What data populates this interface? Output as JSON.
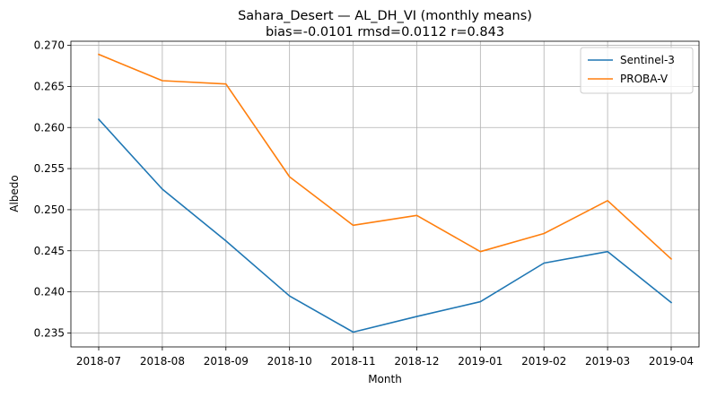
{
  "chart_data": {
    "type": "line",
    "title": "Sahara_Desert — AL_DH_VI (monthly means)",
    "subtitle": "bias=-0.0101  rmsd=0.0112  r=0.843",
    "xlabel": "Month",
    "ylabel": "Albedo",
    "categories": [
      "2018-07",
      "2018-08",
      "2018-09",
      "2018-10",
      "2018-11",
      "2018-12",
      "2019-01",
      "2019-02",
      "2019-03",
      "2019-04"
    ],
    "y_ticks": [
      "0.235",
      "0.240",
      "0.245",
      "0.250",
      "0.255",
      "0.260",
      "0.265",
      "0.270"
    ],
    "ylim": [
      0.2333,
      0.2705
    ],
    "grid": true,
    "legend_position": "top-right",
    "series": [
      {
        "name": "Sentinel-3",
        "color": "#1f77b4",
        "values": [
          0.261,
          0.2525,
          0.2462,
          0.2395,
          0.2351,
          0.237,
          0.2388,
          0.2435,
          0.2449,
          0.2387
        ]
      },
      {
        "name": "PROBA-V",
        "color": "#ff7f0e",
        "values": [
          0.2689,
          0.2657,
          0.2653,
          0.254,
          0.2481,
          0.2493,
          0.2449,
          0.2471,
          0.2511,
          0.244
        ]
      }
    ]
  }
}
